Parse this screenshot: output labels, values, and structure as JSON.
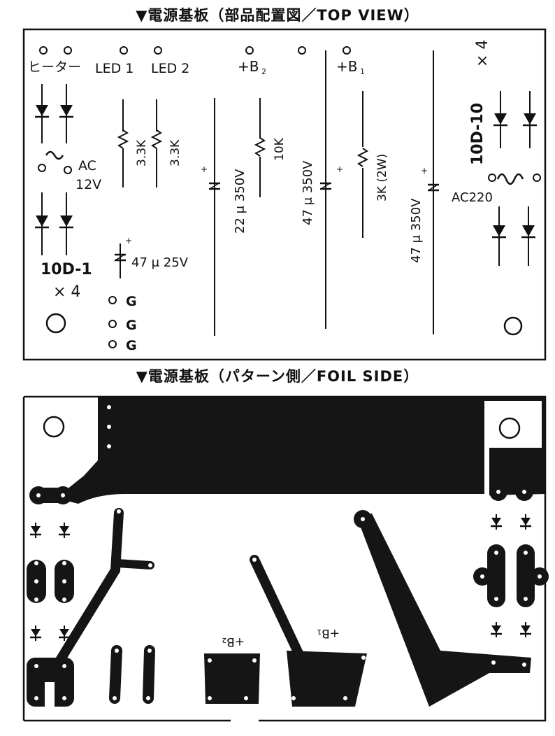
{
  "top_view": {
    "heading": "▼電源基板（部品配置図／TOP VIEW）",
    "labels": {
      "heater": "ヒーター",
      "led1": "LED 1",
      "led2": "LED 2",
      "b2": "+B",
      "b2_sub": "2",
      "b1": "+B",
      "b1_sub": "1",
      "ac": "AC",
      "v12": "12V",
      "r1": "3.3K",
      "r2": "3.3K",
      "r_10k": "10K",
      "r_3k": "3K (2W)",
      "c1": "22 μ  350V",
      "c2": "47 μ  350V",
      "c3": "47 μ  350V",
      "c4": "47 μ  25V",
      "diode_left": "10D-1",
      "diode_left_count": "× 4",
      "diode_right": "10D-10",
      "diode_right_count": "× 4",
      "ac220": "AC220",
      "g1": "G",
      "g2": "G",
      "g3": "G",
      "plus": "+"
    }
  },
  "foil_side": {
    "heading": "▼電源基板（パターン側／FOIL SIDE）",
    "labels": {
      "b2": "+B₂",
      "b1": "+B₁"
    }
  }
}
